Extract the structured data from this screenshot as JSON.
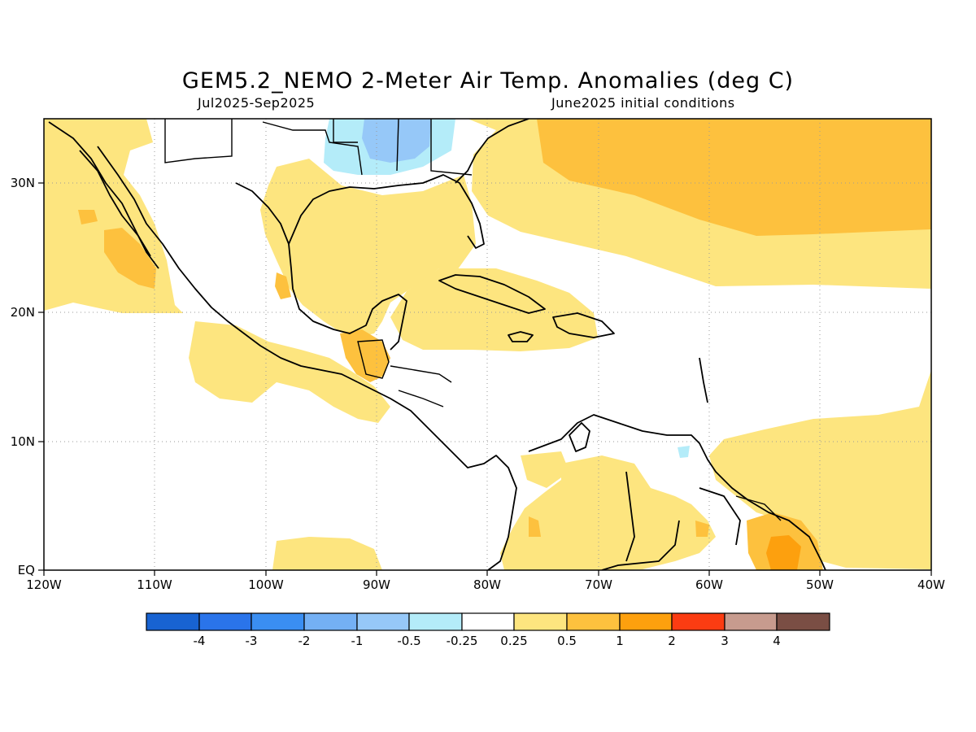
{
  "title": "GEM5.2_NEMO 2-Meter Air Temp. Anomalies (deg C)",
  "period": "Jul2025-Sep2025",
  "init": "June2025 initial conditions",
  "map": {
    "lon_range": [
      -120,
      -40
    ],
    "lat_range": [
      0,
      35
    ],
    "lon_labels": [
      "120W",
      "110W",
      "100W",
      "90W",
      "80W",
      "70W",
      "60W",
      "50W",
      "40W"
    ],
    "lat_labels": [
      "EQ",
      "10N",
      "20N",
      "30N"
    ],
    "grid": "dotted"
  },
  "colors": {
    "lt_-4": "#1863d2",
    "-4_-3": "#2a74ea",
    "-3_-2": "#3a8ef2",
    "-2_-1": "#74b0f4",
    "-1_-0.5": "#96c8f8",
    "-0.5_-0.25": "#b4ecf9",
    "neutral": "#ffffff",
    "0.25_0.5": "#fde57f",
    "0.5_1": "#fdc13e",
    "1_2": "#fda00e",
    "2_3": "#fb3c12",
    "3_4": "#c79b8e",
    "gt_4": "#7a4e44"
  },
  "colorbar": {
    "labels": [
      "-4",
      "-3",
      "-2",
      "-1",
      "-0.5",
      "-0.25",
      "0.25",
      "0.5",
      "1",
      "2",
      "3",
      "4"
    ]
  }
}
